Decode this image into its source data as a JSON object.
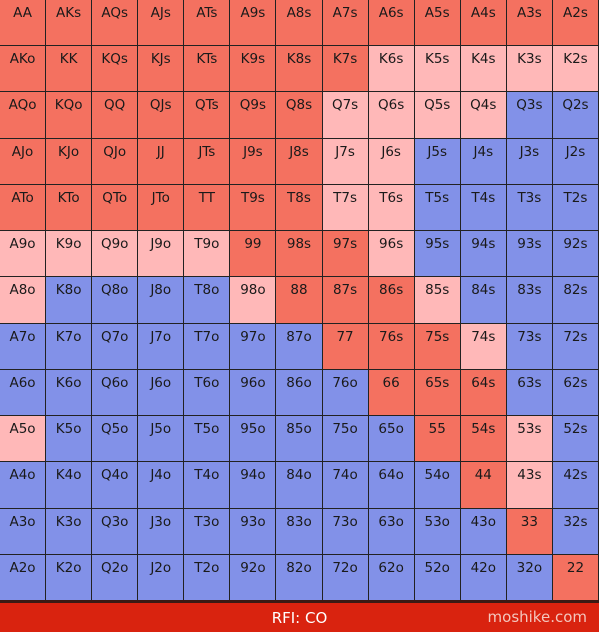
{
  "grid": {
    "labels": [
      [
        "AA",
        "AKs",
        "AQs",
        "AJs",
        "ATs",
        "A9s",
        "A8s",
        "A7s",
        "A6s",
        "A5s",
        "A4s",
        "A3s",
        "A2s"
      ],
      [
        "AKo",
        "KK",
        "KQs",
        "KJs",
        "KTs",
        "K9s",
        "K8s",
        "K7s",
        "K6s",
        "K5s",
        "K4s",
        "K3s",
        "K2s"
      ],
      [
        "AQo",
        "KQo",
        "QQ",
        "QJs",
        "QTs",
        "Q9s",
        "Q8s",
        "Q7s",
        "Q6s",
        "Q5s",
        "Q4s",
        "Q3s",
        "Q2s"
      ],
      [
        "AJo",
        "KJo",
        "QJo",
        "JJ",
        "JTs",
        "J9s",
        "J8s",
        "J7s",
        "J6s",
        "J5s",
        "J4s",
        "J3s",
        "J2s"
      ],
      [
        "ATo",
        "KTo",
        "QTo",
        "JTo",
        "TT",
        "T9s",
        "T8s",
        "T7s",
        "T6s",
        "T5s",
        "T4s",
        "T3s",
        "T2s"
      ],
      [
        "A9o",
        "K9o",
        "Q9o",
        "J9o",
        "T9o",
        "99",
        "98s",
        "97s",
        "96s",
        "95s",
        "94s",
        "93s",
        "92s"
      ],
      [
        "A8o",
        "K8o",
        "Q8o",
        "J8o",
        "T8o",
        "98o",
        "88",
        "87s",
        "86s",
        "85s",
        "84s",
        "83s",
        "82s"
      ],
      [
        "A7o",
        "K7o",
        "Q7o",
        "J7o",
        "T7o",
        "97o",
        "87o",
        "77",
        "76s",
        "75s",
        "74s",
        "73s",
        "72s"
      ],
      [
        "A6o",
        "K6o",
        "Q6o",
        "J6o",
        "T6o",
        "96o",
        "86o",
        "76o",
        "66",
        "65s",
        "64s",
        "63s",
        "62s"
      ],
      [
        "A5o",
        "K5o",
        "Q5o",
        "J5o",
        "T5o",
        "95o",
        "85o",
        "75o",
        "65o",
        "55",
        "54s",
        "53s",
        "52s"
      ],
      [
        "A4o",
        "K4o",
        "Q4o",
        "J4o",
        "T4o",
        "94o",
        "84o",
        "74o",
        "64o",
        "54o",
        "44",
        "43s",
        "42s"
      ],
      [
        "A3o",
        "K3o",
        "Q3o",
        "J3o",
        "T3o",
        "93o",
        "83o",
        "73o",
        "63o",
        "53o",
        "43o",
        "33",
        "32s"
      ],
      [
        "A2o",
        "K2o",
        "Q2o",
        "J2o",
        "T2o",
        "92o",
        "82o",
        "72o",
        "62o",
        "52o",
        "42o",
        "32o",
        "22"
      ]
    ],
    "colors": [
      [
        "#f47160",
        "#f47160",
        "#f47160",
        "#f47160",
        "#f47160",
        "#f47160",
        "#f47160",
        "#f47160",
        "#f47160",
        "#f47160",
        "#f47160",
        "#f47160",
        "#f47160"
      ],
      [
        "#f47160",
        "#f47160",
        "#f47160",
        "#f47160",
        "#f47160",
        "#f47160",
        "#f47160",
        "#f47160",
        "#ffb8b8",
        "#ffb8b8",
        "#ffb8b8",
        "#ffb8b8",
        "#ffb8b8"
      ],
      [
        "#f47160",
        "#f47160",
        "#f47160",
        "#f47160",
        "#f47160",
        "#f47160",
        "#f47160",
        "#ffb8b8",
        "#ffb8b8",
        "#ffb8b8",
        "#ffb8b8",
        "#8291e8",
        "#8291e8"
      ],
      [
        "#f47160",
        "#f47160",
        "#f47160",
        "#f47160",
        "#f47160",
        "#f47160",
        "#f47160",
        "#ffb8b8",
        "#ffb8b8",
        "#8291e8",
        "#8291e8",
        "#8291e8",
        "#8291e8"
      ],
      [
        "#f47160",
        "#f47160",
        "#f47160",
        "#f47160",
        "#f47160",
        "#f47160",
        "#f47160",
        "#ffb8b8",
        "#ffb8b8",
        "#8291e8",
        "#8291e8",
        "#8291e8",
        "#8291e8"
      ],
      [
        "#ffb8b8",
        "#ffb8b8",
        "#ffb8b8",
        "#ffb8b8",
        "#ffb8b8",
        "#f47160",
        "#f47160",
        "#f47160",
        "#ffb8b8",
        "#8291e8",
        "#8291e8",
        "#8291e8",
        "#8291e8"
      ],
      [
        "#ffb8b8",
        "#8291e8",
        "#8291e8",
        "#8291e8",
        "#8291e8",
        "#ffb8b8",
        "#f47160",
        "#f47160",
        "#f47160",
        "#ffb8b8",
        "#8291e8",
        "#8291e8",
        "#8291e8"
      ],
      [
        "#8291e8",
        "#8291e8",
        "#8291e8",
        "#8291e8",
        "#8291e8",
        "#8291e8",
        "#8291e8",
        "#f47160",
        "#f47160",
        "#f47160",
        "#ffb8b8",
        "#8291e8",
        "#8291e8"
      ],
      [
        "#8291e8",
        "#8291e8",
        "#8291e8",
        "#8291e8",
        "#8291e8",
        "#8291e8",
        "#8291e8",
        "#8291e8",
        "#f47160",
        "#f47160",
        "#f47160",
        "#8291e8",
        "#8291e8"
      ],
      [
        "#ffb8b8",
        "#8291e8",
        "#8291e8",
        "#8291e8",
        "#8291e8",
        "#8291e8",
        "#8291e8",
        "#8291e8",
        "#8291e8",
        "#f47160",
        "#f47160",
        "#ffb8b8",
        "#8291e8"
      ],
      [
        "#8291e8",
        "#8291e8",
        "#8291e8",
        "#8291e8",
        "#8291e8",
        "#8291e8",
        "#8291e8",
        "#8291e8",
        "#8291e8",
        "#8291e8",
        "#f47160",
        "#ffb8b8",
        "#8291e8"
      ],
      [
        "#8291e8",
        "#8291e8",
        "#8291e8",
        "#8291e8",
        "#8291e8",
        "#8291e8",
        "#8291e8",
        "#8291e8",
        "#8291e8",
        "#8291e8",
        "#8291e8",
        "#f47160",
        "#8291e8"
      ],
      [
        "#8291e8",
        "#8291e8",
        "#8291e8",
        "#8291e8",
        "#8291e8",
        "#8291e8",
        "#8291e8",
        "#8291e8",
        "#8291e8",
        "#8291e8",
        "#8291e8",
        "#8291e8",
        "#f47160"
      ]
    ]
  },
  "footer": {
    "title": "RFI: CO",
    "brand": "moshike.com"
  }
}
